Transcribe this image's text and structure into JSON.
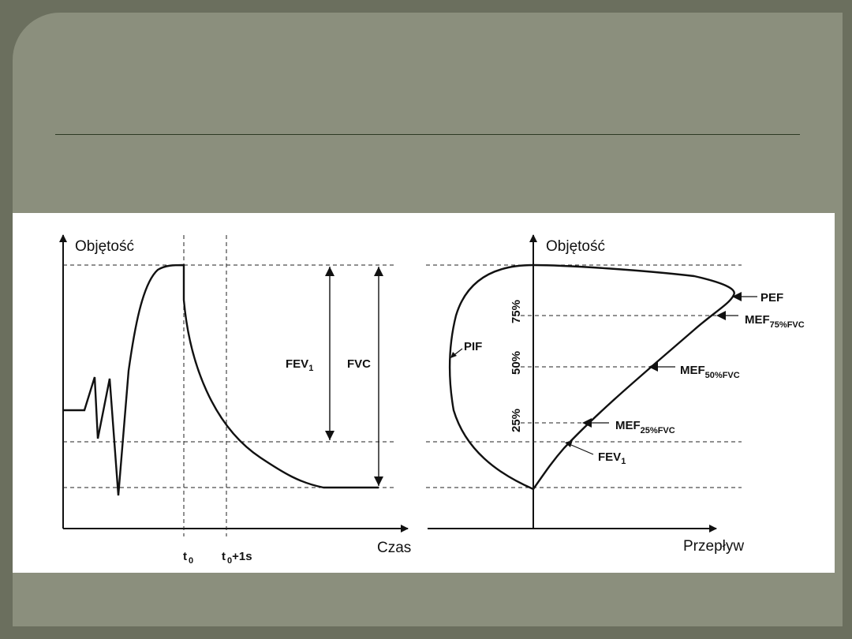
{
  "slide": {
    "bg_color": "#6b6f5e",
    "card_color": "#8b8f7d",
    "panel_color": "#ffffff"
  },
  "diagram": {
    "left": {
      "y_axis_label": "Objętość",
      "x_axis_label": "Czas",
      "t0": {
        "main": "t",
        "sub": "0"
      },
      "t0_plus": {
        "main": "t",
        "sub": "0",
        "tail": "+1s"
      },
      "fev1": {
        "main": "FEV",
        "sub": "1"
      },
      "fvc": "FVC"
    },
    "right": {
      "y_axis_label": "Objętość",
      "x_axis_label": "Przepływ",
      "pif": "PIF",
      "pef": "PEF",
      "mef75": {
        "main": "MEF",
        "sub": "75%FVC"
      },
      "mef50": {
        "main": "MEF",
        "sub": "50%FVC"
      },
      "mef25": {
        "main": "MEF",
        "sub": "25%FVC"
      },
      "fev1": {
        "main": "FEV",
        "sub": "1"
      },
      "pct75": "75%",
      "pct50": "50%",
      "pct25": "25%"
    }
  }
}
